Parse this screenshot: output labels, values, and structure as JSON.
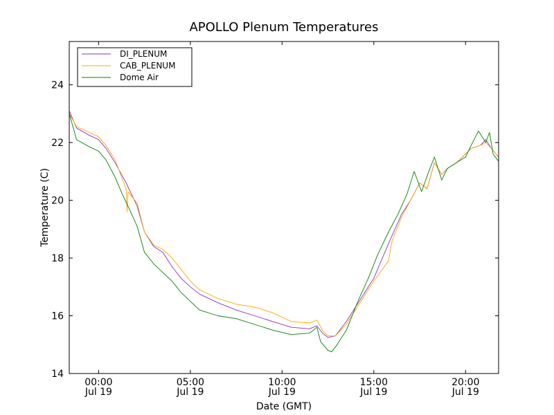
{
  "chart_data": {
    "type": "line",
    "title": "APOLLO Plenum Temperatures",
    "xlabel": "Date (GMT)",
    "ylabel": "Temperature (C)",
    "x_unit": "hours since 00:00 Jul 19 (GMT)",
    "xlim": [
      -1.6,
      21.8
    ],
    "ylim": [
      14,
      25.5
    ],
    "yticks": [
      14,
      16,
      18,
      20,
      22,
      24
    ],
    "xticks": [
      {
        "value": 0,
        "time": "00:00",
        "date": "Jul 19"
      },
      {
        "value": 5,
        "time": "05:00",
        "date": "Jul 19"
      },
      {
        "value": 10,
        "time": "10:00",
        "date": "Jul 19"
      },
      {
        "value": 15,
        "time": "15:00",
        "date": "Jul 19"
      },
      {
        "value": 20,
        "time": "20:00",
        "date": "Jul 19"
      }
    ],
    "grid": false,
    "legend_position": "top-left",
    "series": [
      {
        "name": "DI_PLENUM",
        "color": "#8b2ccf",
        "points": [
          [
            -1.6,
            23.1
          ],
          [
            -1.2,
            22.5
          ],
          [
            -0.5,
            22.25
          ],
          [
            0.0,
            22.1
          ],
          [
            0.4,
            21.8
          ],
          [
            0.9,
            21.3
          ],
          [
            1.5,
            20.6
          ],
          [
            2.1,
            19.8
          ],
          [
            2.5,
            18.9
          ],
          [
            3.0,
            18.4
          ],
          [
            3.5,
            18.2
          ],
          [
            4.0,
            17.7
          ],
          [
            4.5,
            17.3
          ],
          [
            5.0,
            17.0
          ],
          [
            5.5,
            16.75
          ],
          [
            6.5,
            16.45
          ],
          [
            7.5,
            16.2
          ],
          [
            8.5,
            16.0
          ],
          [
            9.5,
            15.8
          ],
          [
            10.5,
            15.6
          ],
          [
            11.5,
            15.55
          ],
          [
            11.9,
            15.65
          ],
          [
            12.2,
            15.4
          ],
          [
            12.5,
            15.25
          ],
          [
            12.9,
            15.3
          ],
          [
            13.5,
            15.8
          ],
          [
            14.2,
            16.5
          ],
          [
            15.0,
            17.3
          ],
          [
            15.8,
            18.5
          ],
          [
            16.5,
            19.5
          ],
          [
            17.0,
            20.0
          ],
          [
            17.5,
            20.6
          ],
          [
            17.9,
            20.4
          ],
          [
            18.3,
            21.3
          ],
          [
            18.7,
            20.9
          ],
          [
            19.0,
            21.1
          ],
          [
            19.5,
            21.3
          ],
          [
            20.0,
            21.6
          ],
          [
            20.3,
            21.8
          ],
          [
            20.8,
            21.9
          ],
          [
            21.1,
            22.1
          ],
          [
            21.4,
            21.8
          ],
          [
            21.8,
            21.5
          ]
        ]
      },
      {
        "name": "CAB_PLENUM",
        "color": "#ffa500",
        "points": [
          [
            -1.6,
            23.0
          ],
          [
            -1.2,
            22.55
          ],
          [
            -0.5,
            22.35
          ],
          [
            0.0,
            22.2
          ],
          [
            0.4,
            21.9
          ],
          [
            0.9,
            21.4
          ],
          [
            1.5,
            20.4
          ],
          [
            1.55,
            19.6
          ],
          [
            1.6,
            20.3
          ],
          [
            2.1,
            19.9
          ],
          [
            2.5,
            18.9
          ],
          [
            3.0,
            18.45
          ],
          [
            3.5,
            18.3
          ],
          [
            4.0,
            18.0
          ],
          [
            4.5,
            17.6
          ],
          [
            5.0,
            17.2
          ],
          [
            5.5,
            16.9
          ],
          [
            6.5,
            16.6
          ],
          [
            7.5,
            16.4
          ],
          [
            8.5,
            16.3
          ],
          [
            9.5,
            16.1
          ],
          [
            10.5,
            15.8
          ],
          [
            11.5,
            15.75
          ],
          [
            11.9,
            15.85
          ],
          [
            12.2,
            15.5
          ],
          [
            12.5,
            15.3
          ],
          [
            12.9,
            15.3
          ],
          [
            13.5,
            15.7
          ],
          [
            14.2,
            16.4
          ],
          [
            15.0,
            17.2
          ],
          [
            15.8,
            17.9
          ],
          [
            16.0,
            18.6
          ],
          [
            16.5,
            19.4
          ],
          [
            17.0,
            20.0
          ],
          [
            17.5,
            20.6
          ],
          [
            17.9,
            20.4
          ],
          [
            18.3,
            21.3
          ],
          [
            18.7,
            20.9
          ],
          [
            19.0,
            21.1
          ],
          [
            19.5,
            21.3
          ],
          [
            20.0,
            21.6
          ],
          [
            20.3,
            21.8
          ],
          [
            20.8,
            21.9
          ],
          [
            21.1,
            22.0
          ],
          [
            21.4,
            21.8
          ],
          [
            21.8,
            21.5
          ]
        ]
      },
      {
        "name": "Dome Air",
        "color": "#008000",
        "points": [
          [
            -1.6,
            23.0
          ],
          [
            -1.2,
            22.1
          ],
          [
            -0.5,
            21.85
          ],
          [
            0.0,
            21.7
          ],
          [
            0.4,
            21.4
          ],
          [
            0.9,
            20.8
          ],
          [
            1.3,
            20.2
          ],
          [
            1.6,
            19.8
          ],
          [
            2.1,
            19.1
          ],
          [
            2.5,
            18.2
          ],
          [
            3.0,
            17.8
          ],
          [
            3.5,
            17.5
          ],
          [
            4.0,
            17.2
          ],
          [
            4.5,
            16.8
          ],
          [
            5.0,
            16.5
          ],
          [
            5.5,
            16.2
          ],
          [
            6.5,
            16.0
          ],
          [
            7.5,
            15.9
          ],
          [
            8.5,
            15.7
          ],
          [
            9.5,
            15.5
          ],
          [
            10.5,
            15.35
          ],
          [
            11.5,
            15.4
          ],
          [
            11.9,
            15.6
          ],
          [
            12.1,
            15.1
          ],
          [
            12.5,
            14.8
          ],
          [
            12.7,
            14.75
          ],
          [
            13.0,
            15.0
          ],
          [
            13.5,
            15.5
          ],
          [
            14.2,
            16.6
          ],
          [
            14.7,
            17.3
          ],
          [
            15.2,
            18.1
          ],
          [
            15.8,
            18.9
          ],
          [
            16.3,
            19.5
          ],
          [
            16.8,
            20.2
          ],
          [
            17.2,
            21.0
          ],
          [
            17.6,
            20.3
          ],
          [
            18.0,
            21.0
          ],
          [
            18.3,
            21.5
          ],
          [
            18.7,
            20.7
          ],
          [
            19.0,
            21.1
          ],
          [
            19.5,
            21.3
          ],
          [
            20.0,
            21.5
          ],
          [
            20.3,
            21.9
          ],
          [
            20.7,
            22.4
          ],
          [
            21.1,
            22.0
          ],
          [
            21.3,
            22.35
          ],
          [
            21.5,
            21.6
          ],
          [
            21.8,
            21.35
          ]
        ]
      }
    ]
  }
}
